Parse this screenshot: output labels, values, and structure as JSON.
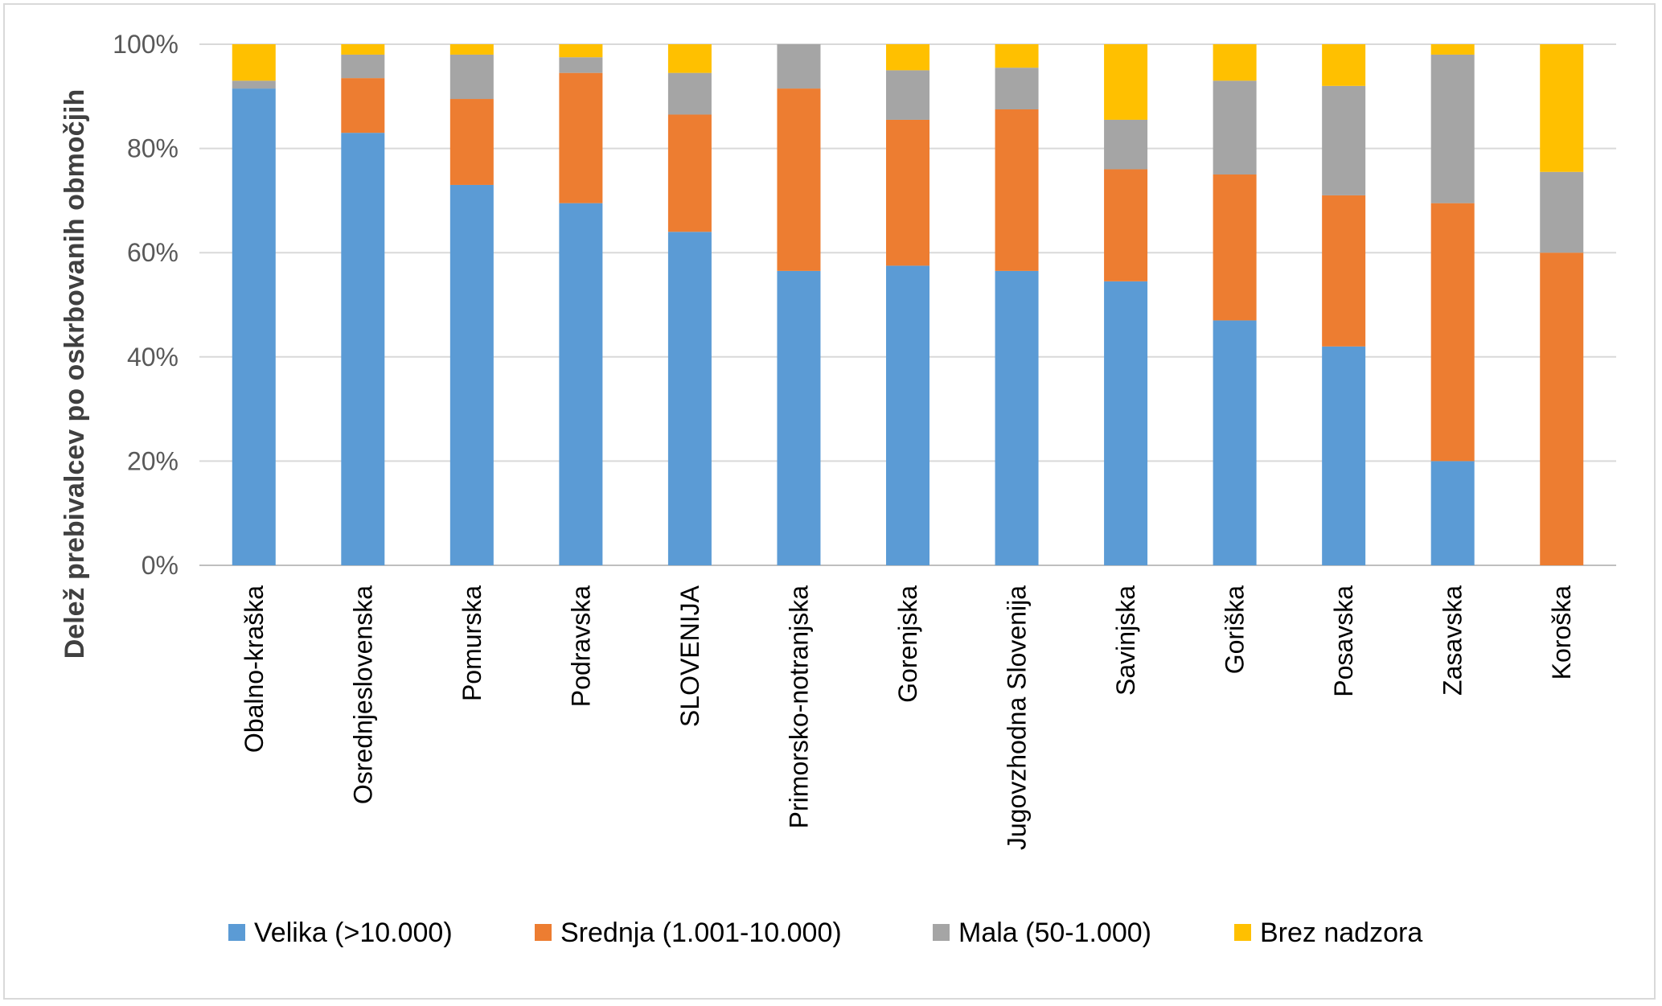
{
  "chart_data": {
    "type": "bar",
    "stacked": true,
    "percent": true,
    "title": "",
    "xlabel": "",
    "ylabel": "Delež prebivalcev po oskrbovanih območjih",
    "ylim": [
      0,
      100
    ],
    "yticks": [
      "0%",
      "20%",
      "40%",
      "60%",
      "80%",
      "100%"
    ],
    "grid": true,
    "legend_position": "bottom",
    "categories": [
      "Obalno-kraška",
      "Osrednjeslovenska",
      "Pomurska",
      "Podravska",
      "SLOVENIJA",
      "Primorsko-notranjska",
      "Gorenjska",
      "Jugovzhodna Slovenija",
      "Savinjska",
      "Goriška",
      "Posavska",
      "Zasavska",
      "Koroška"
    ],
    "series": [
      {
        "name": "Velika (>10.000)",
        "color": "#5b9bd5",
        "values": [
          91.5,
          83,
          73,
          69.5,
          64,
          56.5,
          57.5,
          56.5,
          54.5,
          47,
          42,
          20,
          0
        ]
      },
      {
        "name": "Srednja (1.001-10.000)",
        "color": "#ed7d31",
        "values": [
          0,
          10.5,
          16.5,
          25,
          22.5,
          35,
          28,
          31,
          21.5,
          28,
          29,
          49.5,
          60
        ]
      },
      {
        "name": "Mala (50-1.000)",
        "color": "#a5a5a5",
        "values": [
          1.5,
          4.5,
          8.5,
          3,
          8,
          8.5,
          9.5,
          8,
          9.5,
          18,
          21,
          28.5,
          15.5
        ]
      },
      {
        "name": "Brez nadzora",
        "color": "#ffc000",
        "values": [
          7,
          2,
          2,
          2.5,
          5.5,
          0,
          5,
          4.5,
          14.5,
          7,
          8,
          2,
          24.5
        ]
      }
    ]
  }
}
